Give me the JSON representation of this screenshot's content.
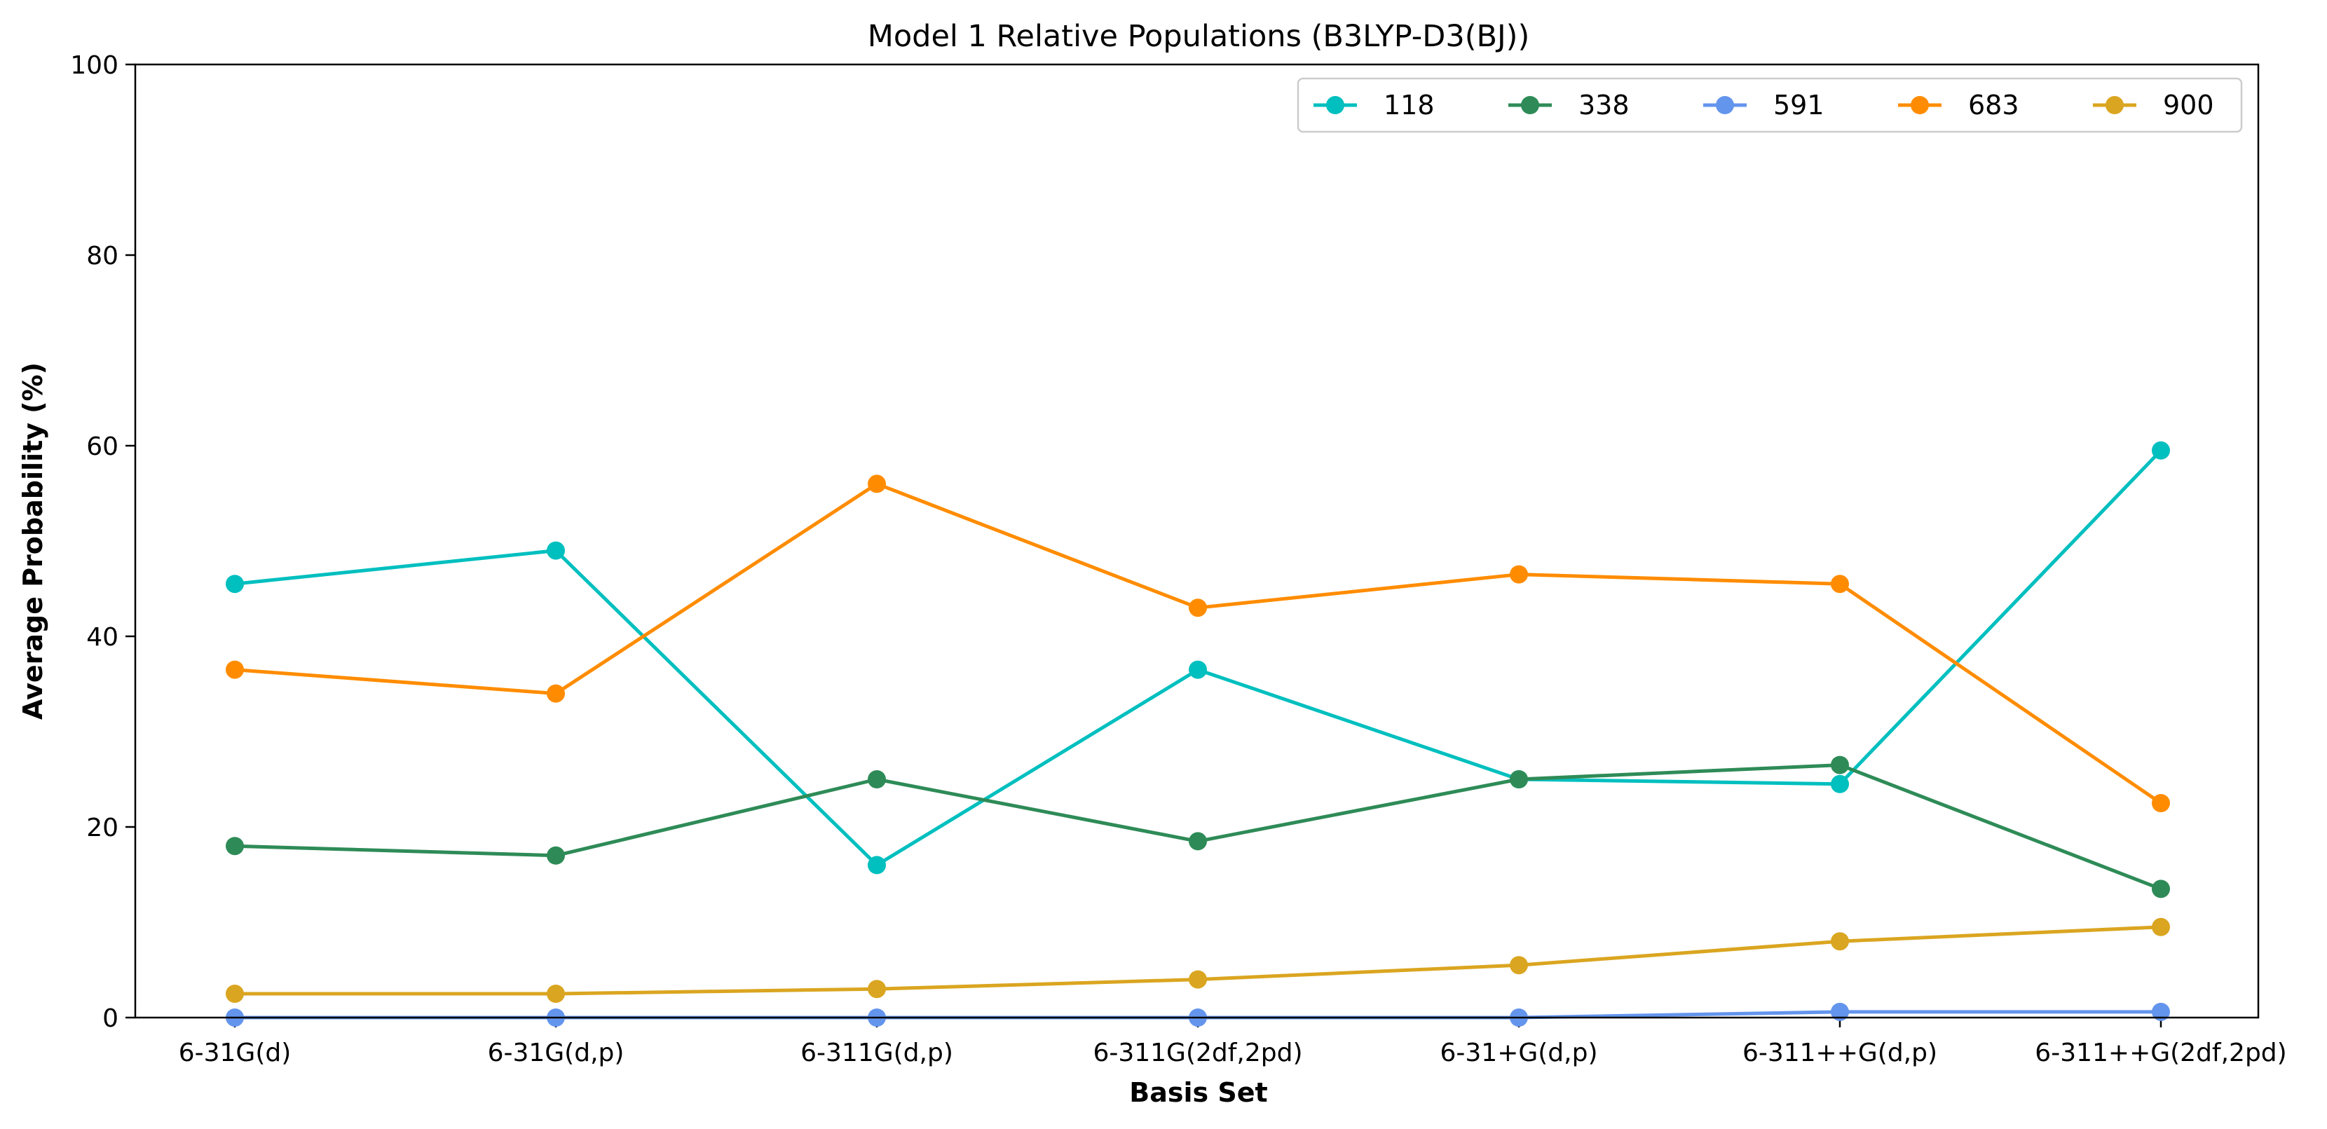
{
  "chart_data": {
    "type": "line",
    "title": "Model 1 Relative Populations (B3LYP-D3(BJ))",
    "xlabel": "Basis Set",
    "ylabel": "Average Probability (%)",
    "categories": [
      "6-31G(d)",
      "6-31G(d,p)",
      "6-311G(d,p)",
      "6-311G(2df,2pd)",
      "6-31+G(d,p)",
      "6-311++G(d,p)",
      "6-311++G(2df,2pd)"
    ],
    "ylim": [
      0,
      100
    ],
    "yticks": [
      0,
      20,
      40,
      60,
      80,
      100
    ],
    "grid": false,
    "legend_position": "top-right",
    "series": [
      {
        "name": "118",
        "color": "#00BFBF",
        "values": [
          45.5,
          49.0,
          16.0,
          36.5,
          25.0,
          24.5,
          59.5
        ]
      },
      {
        "name": "338",
        "color": "#2E8B57",
        "values": [
          18.0,
          17.0,
          25.0,
          18.5,
          25.0,
          26.5,
          13.5
        ]
      },
      {
        "name": "591",
        "color": "#6495ED",
        "values": [
          0.0,
          0.0,
          0.0,
          0.0,
          0.0,
          0.6,
          0.6
        ]
      },
      {
        "name": "683",
        "color": "#FF8C00",
        "values": [
          36.5,
          34.0,
          56.0,
          43.0,
          46.5,
          45.5,
          22.5
        ]
      },
      {
        "name": "900",
        "color": "#DAA520",
        "values": [
          2.5,
          2.5,
          3.0,
          4.0,
          5.5,
          8.0,
          9.5
        ]
      }
    ]
  }
}
